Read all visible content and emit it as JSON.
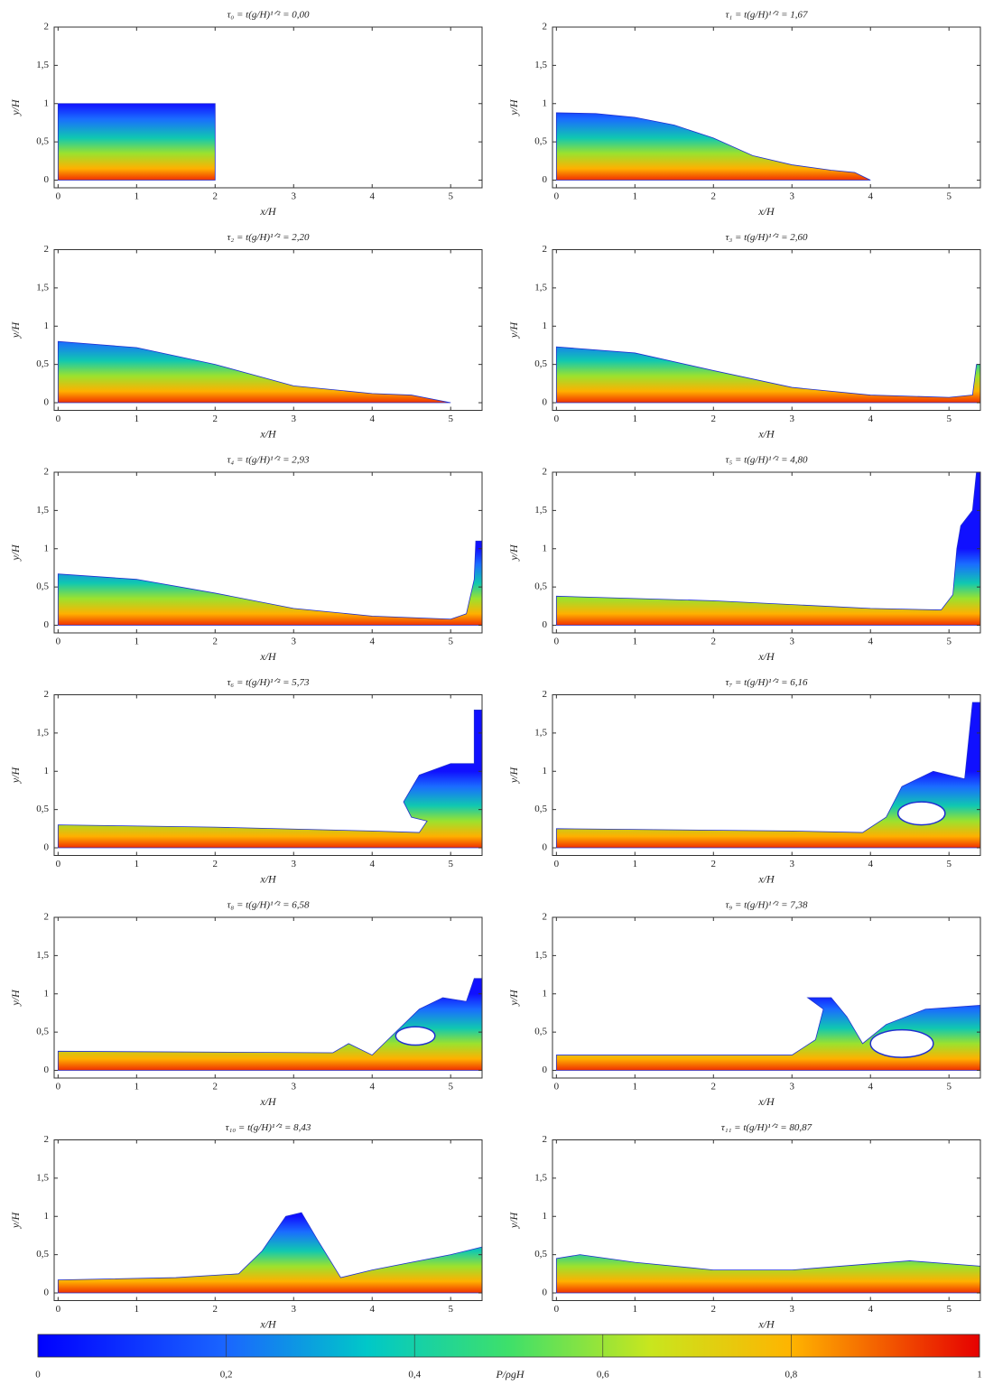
{
  "figure": {
    "panels": [
      {
        "title": "τ₀ = t(g/H)¹ᐟ² = 0,00"
      },
      {
        "title": "τ₁ = t(g/H)¹ᐟ² = 1,67"
      },
      {
        "title": "τ₂ = t(g/H)¹ᐟ² = 2,20"
      },
      {
        "title": "τ₃ = t(g/H)¹ᐟ² = 2,60"
      },
      {
        "title": "τ₄ = t(g/H)¹ᐟ² = 2,93"
      },
      {
        "title": "τ₅ = t(g/H)¹ᐟ² = 4,80"
      },
      {
        "title": "τ₆ = t(g/H)¹ᐟ² = 5,73"
      },
      {
        "title": "τ₇ = t(g/H)¹ᐟ² = 6,16"
      },
      {
        "title": "τ₈ = t(g/H)¹ᐟ² = 6,58"
      },
      {
        "title": "τ₉ = t(g/H)¹ᐟ² = 7,38"
      },
      {
        "title": "τ₁₀ = t(g/H)¹ᐟ² = 8,43"
      },
      {
        "title": "τ₁₁ = t(g/H)¹ᐟ² = 80,87"
      }
    ],
    "x_label": "x/H",
    "y_label": "y/H",
    "xlim": [
      -0.05,
      5.4
    ],
    "ylim": [
      -0.1,
      2
    ],
    "xticks": [
      0,
      1,
      2,
      3,
      4,
      5
    ],
    "yticks": [
      0,
      {
        "value": 0.5,
        "label": "0,5"
      },
      1,
      {
        "value": 1.5,
        "label": "1,5"
      },
      2
    ],
    "colorbar": {
      "label": "P/ρgH",
      "lim": [
        0,
        1
      ],
      "ticks": [
        0,
        {
          "value": 0.2,
          "label": "0,2"
        },
        {
          "value": 0.4,
          "label": "0,4"
        },
        {
          "value": 0.6,
          "label": "0,6"
        },
        {
          "value": 0.8,
          "label": "0,8"
        },
        1
      ]
    }
  }
}
